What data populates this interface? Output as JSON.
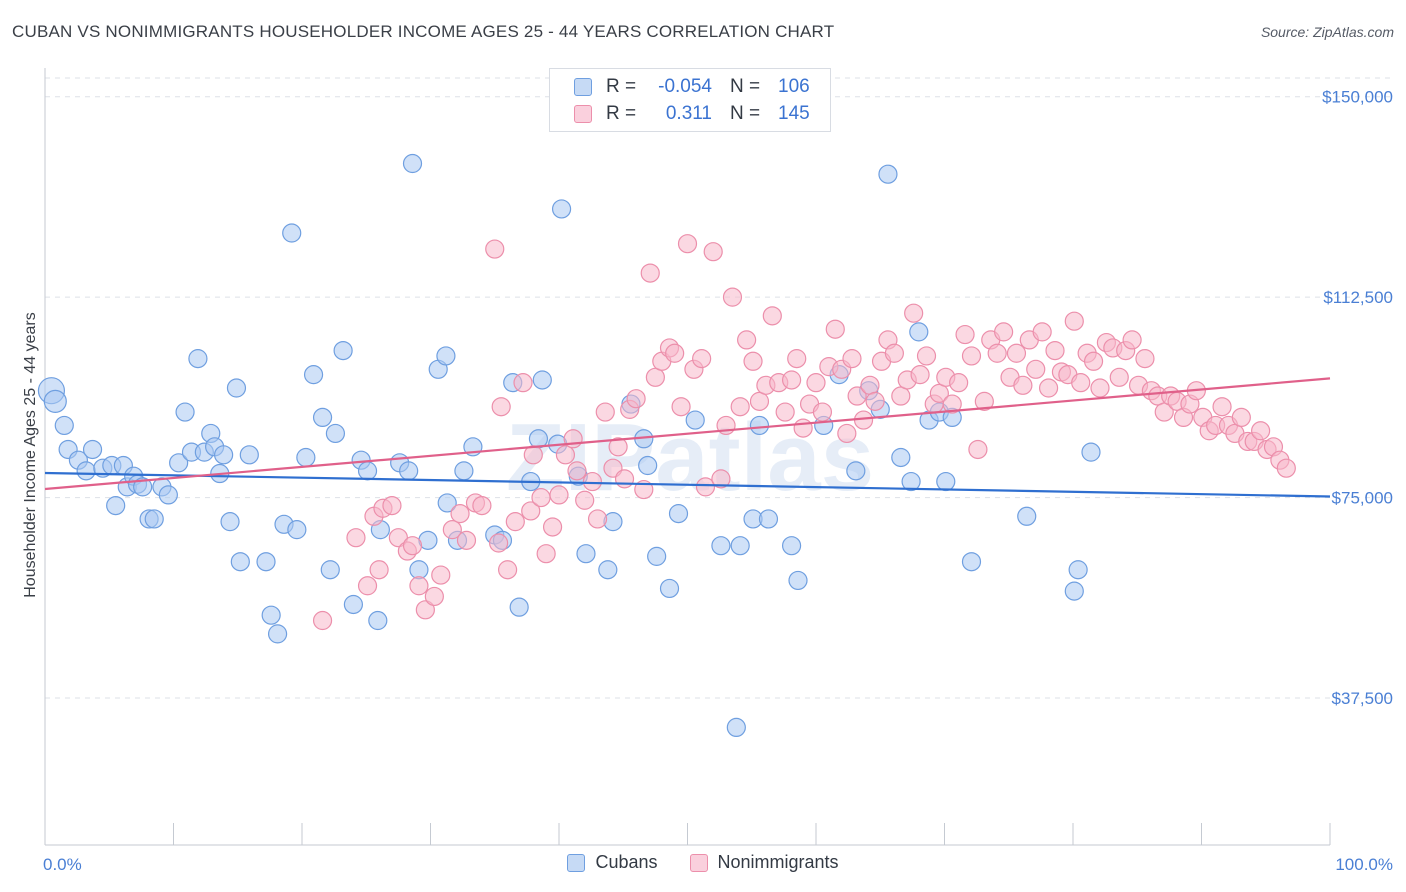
{
  "title": "CUBAN VS NONIMMIGRANTS HOUSEHOLDER INCOME AGES 25 - 44 YEARS CORRELATION CHART",
  "source": "Source: ZipAtlas.com",
  "watermark": "ZIPatlas",
  "legend_top": {
    "r_label": "R =",
    "n_label": "N =",
    "rows": [
      {
        "r": "-0.054",
        "n": "106",
        "color": "#a9c8f2"
      },
      {
        "r": "0.311",
        "n": "145",
        "color": "#f7b8ca"
      }
    ]
  },
  "legend_bottom": [
    "Cubans",
    "Nonimmigrants"
  ],
  "colors": {
    "cubans_fill": "#a9c8f2",
    "cubans_stroke": "#6f9fe0",
    "cubans_line": "#2f6fd0",
    "nonimm_fill": "#f7b8ca",
    "nonimm_stroke": "#ec8fab",
    "nonimm_line": "#e0608a",
    "axis_text": "#4a7fd4",
    "grid": "#dde1e7"
  },
  "chart_data": {
    "type": "scatter",
    "title": "CUBAN VS NONIMMIGRANTS HOUSEHOLDER INCOME AGES 25 - 44 YEARS CORRELATION CHART",
    "xlabel": "",
    "ylabel": "Householder Income Ages 25 - 44 years",
    "x_tick_labels": [
      "0.0%",
      "100.0%"
    ],
    "y_tick_labels": [
      "$150,000",
      "$112,500",
      "$75,000",
      "$37,500"
    ],
    "y_ticks": [
      150000,
      112500,
      75000,
      37500
    ],
    "xlim": [
      0,
      100
    ],
    "ylim": [
      10000,
      153500
    ],
    "grid": true,
    "legend": "top-center",
    "series": [
      {
        "name": "Cubans",
        "R": -0.054,
        "N": 106,
        "trend": {
          "x": [
            0,
            100
          ],
          "y": [
            79600,
            75200
          ]
        },
        "points": [
          [
            0.5,
            95.0
          ],
          [
            0.8,
            93.0
          ],
          [
            1.5,
            88.5
          ],
          [
            1.8,
            84.0
          ],
          [
            2.6,
            82.0
          ],
          [
            3.2,
            80.0
          ],
          [
            3.7,
            84.0
          ],
          [
            4.5,
            80.5
          ],
          [
            5.2,
            81.0
          ],
          [
            5.5,
            73.5
          ],
          [
            6.1,
            81.0
          ],
          [
            6.4,
            77.0
          ],
          [
            6.9,
            79.0
          ],
          [
            7.2,
            77.5
          ],
          [
            7.6,
            77.0
          ],
          [
            8.1,
            71.0
          ],
          [
            8.5,
            71.0
          ],
          [
            9.1,
            77.0
          ],
          [
            9.6,
            75.5
          ],
          [
            10.4,
            81.5
          ],
          [
            10.9,
            91.0
          ],
          [
            11.4,
            83.5
          ],
          [
            11.9,
            101.0
          ],
          [
            12.4,
            83.5
          ],
          [
            12.9,
            87.0
          ],
          [
            13.2,
            84.5
          ],
          [
            13.6,
            79.5
          ],
          [
            13.9,
            83.0
          ],
          [
            14.4,
            70.5
          ],
          [
            14.9,
            95.5
          ],
          [
            15.2,
            63.0
          ],
          [
            15.9,
            83.0
          ],
          [
            17.2,
            63.0
          ],
          [
            17.6,
            53.0
          ],
          [
            18.1,
            49.5
          ],
          [
            18.6,
            70.0
          ],
          [
            19.2,
            124.5
          ],
          [
            19.6,
            69.0
          ],
          [
            20.3,
            82.5
          ],
          [
            20.9,
            98.0
          ],
          [
            21.6,
            90.0
          ],
          [
            22.2,
            61.5
          ],
          [
            22.6,
            87.0
          ],
          [
            23.2,
            102.5
          ],
          [
            24.0,
            55.0
          ],
          [
            24.6,
            82.0
          ],
          [
            25.1,
            80.0
          ],
          [
            25.9,
            52.0
          ],
          [
            26.1,
            69.0
          ],
          [
            27.6,
            81.5
          ],
          [
            28.3,
            80.0
          ],
          [
            28.6,
            137.5
          ],
          [
            29.1,
            61.5
          ],
          [
            29.8,
            67.0
          ],
          [
            30.6,
            99.0
          ],
          [
            31.2,
            101.5
          ],
          [
            31.3,
            74.0
          ],
          [
            32.1,
            67.0
          ],
          [
            32.6,
            80.0
          ],
          [
            33.3,
            84.5
          ],
          [
            35.0,
            68.0
          ],
          [
            35.6,
            67.0
          ],
          [
            36.4,
            96.5
          ],
          [
            36.9,
            54.5
          ],
          [
            37.8,
            78.0
          ],
          [
            38.4,
            86.0
          ],
          [
            38.7,
            97.0
          ],
          [
            39.9,
            85.0
          ],
          [
            40.2,
            129.0
          ],
          [
            41.5,
            79.0
          ],
          [
            42.1,
            64.5
          ],
          [
            43.8,
            61.5
          ],
          [
            44.2,
            70.5
          ],
          [
            45.6,
            92.5
          ],
          [
            46.6,
            86.0
          ],
          [
            46.9,
            81.0
          ],
          [
            47.6,
            64.0
          ],
          [
            48.6,
            58.0
          ],
          [
            49.3,
            72.0
          ],
          [
            50.6,
            89.5
          ],
          [
            52.6,
            66.0
          ],
          [
            53.8,
            32.0
          ],
          [
            54.1,
            66.0
          ],
          [
            55.1,
            71.0
          ],
          [
            55.6,
            88.5
          ],
          [
            56.3,
            71.0
          ],
          [
            58.1,
            66.0
          ],
          [
            58.6,
            59.5
          ],
          [
            60.6,
            88.5
          ],
          [
            61.8,
            98.0
          ],
          [
            63.1,
            80.0
          ],
          [
            64.1,
            95.0
          ],
          [
            65.0,
            91.5
          ],
          [
            65.6,
            135.5
          ],
          [
            66.6,
            82.5
          ],
          [
            67.4,
            78.0
          ],
          [
            68.0,
            106.0
          ],
          [
            68.8,
            89.5
          ],
          [
            69.6,
            91.0
          ],
          [
            70.1,
            78.0
          ],
          [
            70.6,
            90.0
          ],
          [
            72.1,
            63.0
          ],
          [
            76.4,
            71.5
          ],
          [
            80.1,
            57.5
          ],
          [
            80.4,
            61.5
          ],
          [
            81.4,
            83.5
          ]
        ]
      },
      {
        "name": "Nonimmigrants",
        "R": 0.311,
        "N": 145,
        "trend": {
          "x": [
            0,
            100
          ],
          "y": [
            76600,
            97300
          ]
        },
        "points": [
          [
            21.6,
            52.0
          ],
          [
            24.2,
            67.5
          ],
          [
            25.1,
            58.5
          ],
          [
            25.6,
            71.5
          ],
          [
            26.0,
            61.5
          ],
          [
            26.3,
            73.0
          ],
          [
            27.0,
            73.5
          ],
          [
            27.5,
            67.5
          ],
          [
            28.2,
            65.0
          ],
          [
            28.6,
            66.0
          ],
          [
            29.1,
            58.5
          ],
          [
            29.6,
            54.0
          ],
          [
            30.3,
            56.5
          ],
          [
            30.8,
            60.5
          ],
          [
            31.7,
            69.0
          ],
          [
            32.3,
            72.0
          ],
          [
            32.8,
            67.0
          ],
          [
            33.5,
            74.0
          ],
          [
            34.0,
            73.5
          ],
          [
            35.0,
            121.5
          ],
          [
            35.3,
            66.5
          ],
          [
            35.5,
            92.0
          ],
          [
            36.0,
            61.5
          ],
          [
            36.6,
            70.5
          ],
          [
            37.2,
            96.5
          ],
          [
            37.8,
            72.5
          ],
          [
            38.0,
            83.0
          ],
          [
            38.6,
            75.0
          ],
          [
            39.0,
            64.5
          ],
          [
            39.5,
            69.5
          ],
          [
            40.0,
            75.5
          ],
          [
            40.5,
            83.0
          ],
          [
            41.1,
            86.0
          ],
          [
            41.4,
            80.0
          ],
          [
            42.0,
            74.5
          ],
          [
            42.6,
            78.0
          ],
          [
            43.0,
            71.0
          ],
          [
            43.6,
            91.0
          ],
          [
            44.2,
            80.5
          ],
          [
            44.6,
            84.5
          ],
          [
            45.1,
            78.5
          ],
          [
            45.5,
            91.5
          ],
          [
            46.0,
            93.5
          ],
          [
            46.6,
            76.5
          ],
          [
            47.1,
            117.0
          ],
          [
            47.5,
            97.5
          ],
          [
            48.0,
            100.5
          ],
          [
            48.6,
            103.0
          ],
          [
            49.0,
            102.0
          ],
          [
            49.5,
            92.0
          ],
          [
            50.0,
            122.5
          ],
          [
            50.5,
            99.0
          ],
          [
            51.1,
            101.0
          ],
          [
            51.4,
            77.0
          ],
          [
            52.0,
            121.0
          ],
          [
            52.6,
            78.5
          ],
          [
            53.0,
            88.5
          ],
          [
            53.5,
            112.5
          ],
          [
            54.1,
            92.0
          ],
          [
            54.6,
            104.5
          ],
          [
            55.1,
            100.5
          ],
          [
            55.6,
            93.0
          ],
          [
            56.1,
            96.0
          ],
          [
            56.6,
            109.0
          ],
          [
            57.1,
            96.5
          ],
          [
            57.6,
            91.0
          ],
          [
            58.1,
            97.0
          ],
          [
            58.5,
            101.0
          ],
          [
            59.0,
            88.0
          ],
          [
            59.5,
            92.5
          ],
          [
            60.0,
            96.5
          ],
          [
            60.5,
            91.0
          ],
          [
            61.0,
            99.5
          ],
          [
            61.5,
            106.5
          ],
          [
            62.0,
            99.0
          ],
          [
            62.4,
            87.0
          ],
          [
            62.8,
            101.0
          ],
          [
            63.2,
            94.0
          ],
          [
            63.7,
            89.5
          ],
          [
            64.2,
            96.0
          ],
          [
            64.6,
            93.0
          ],
          [
            65.1,
            100.5
          ],
          [
            65.6,
            104.5
          ],
          [
            66.1,
            102.0
          ],
          [
            66.6,
            94.0
          ],
          [
            67.1,
            97.0
          ],
          [
            67.6,
            109.5
          ],
          [
            68.1,
            98.0
          ],
          [
            68.6,
            101.5
          ],
          [
            69.2,
            92.5
          ],
          [
            69.6,
            94.5
          ],
          [
            70.1,
            97.5
          ],
          [
            70.6,
            92.5
          ],
          [
            71.1,
            96.5
          ],
          [
            71.6,
            105.5
          ],
          [
            72.1,
            101.5
          ],
          [
            72.6,
            84.0
          ],
          [
            73.1,
            93.0
          ],
          [
            73.6,
            104.5
          ],
          [
            74.1,
            102.0
          ],
          [
            74.6,
            106.0
          ],
          [
            75.1,
            97.5
          ],
          [
            75.6,
            102.0
          ],
          [
            76.1,
            96.0
          ],
          [
            76.6,
            104.5
          ],
          [
            77.1,
            99.0
          ],
          [
            77.6,
            106.0
          ],
          [
            78.1,
            95.5
          ],
          [
            78.6,
            102.5
          ],
          [
            79.1,
            98.5
          ],
          [
            79.6,
            98.0
          ],
          [
            80.1,
            108.0
          ],
          [
            80.6,
            96.5
          ],
          [
            81.1,
            102.0
          ],
          [
            81.6,
            100.5
          ],
          [
            82.1,
            95.5
          ],
          [
            82.6,
            104.0
          ],
          [
            83.1,
            103.0
          ],
          [
            83.6,
            97.5
          ],
          [
            84.1,
            102.5
          ],
          [
            84.6,
            104.5
          ],
          [
            85.1,
            96.0
          ],
          [
            85.6,
            101.0
          ],
          [
            86.1,
            95.0
          ],
          [
            86.6,
            94.0
          ],
          [
            87.1,
            91.0
          ],
          [
            87.6,
            94.0
          ],
          [
            88.1,
            93.0
          ],
          [
            88.6,
            90.0
          ],
          [
            89.1,
            92.5
          ],
          [
            89.6,
            95.0
          ],
          [
            90.1,
            90.0
          ],
          [
            90.6,
            87.5
          ],
          [
            91.1,
            88.5
          ],
          [
            91.6,
            92.0
          ],
          [
            92.1,
            88.5
          ],
          [
            92.6,
            87.0
          ],
          [
            93.1,
            90.0
          ],
          [
            93.6,
            85.5
          ],
          [
            94.1,
            85.5
          ],
          [
            94.6,
            87.5
          ],
          [
            95.1,
            84.0
          ],
          [
            95.6,
            84.5
          ],
          [
            96.1,
            82.0
          ],
          [
            96.6,
            80.5
          ]
        ]
      }
    ]
  }
}
